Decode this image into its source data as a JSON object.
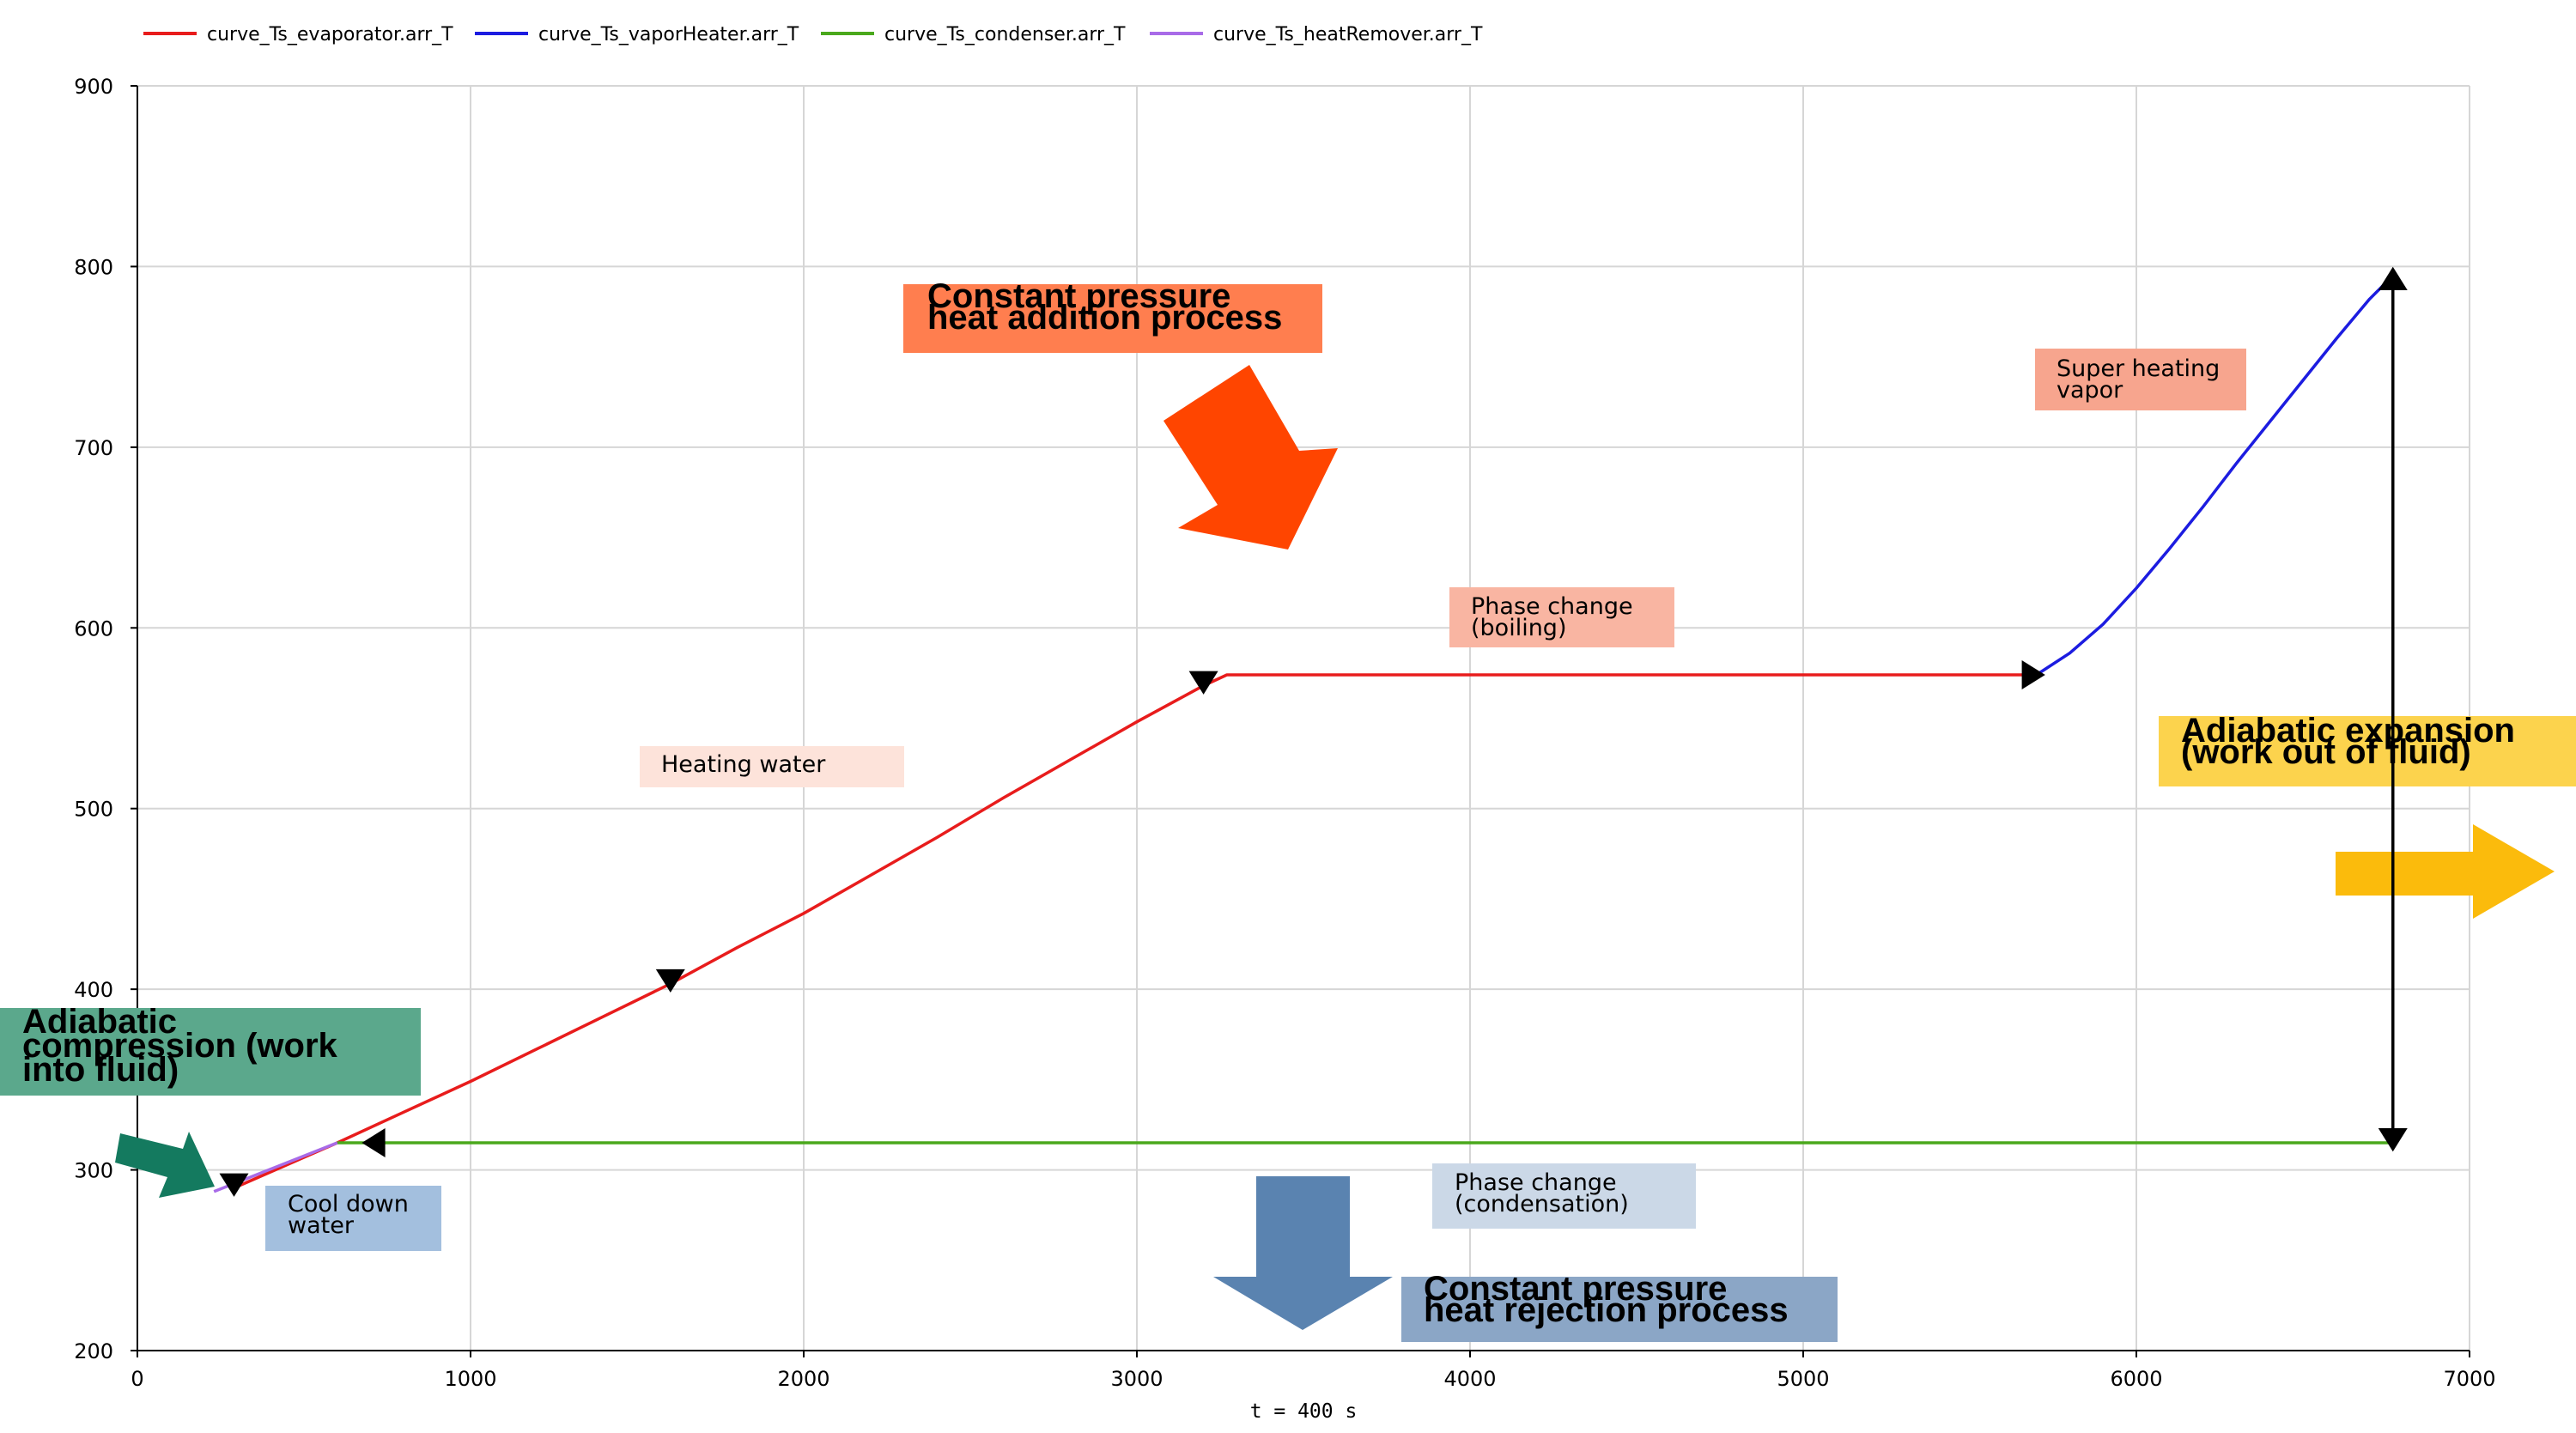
{
  "chart_data": {
    "type": "line",
    "title": "",
    "xlabel": "t = 400 s",
    "ylabel": "",
    "xlim": [
      0,
      7000
    ],
    "ylim": [
      200,
      900
    ],
    "xticks": [
      0,
      1000,
      2000,
      3000,
      4000,
      5000,
      6000,
      7000
    ],
    "yticks": [
      200,
      300,
      400,
      500,
      600,
      700,
      800,
      900
    ],
    "grid": true,
    "legend_position": "top-left",
    "series": [
      {
        "name": "curve_Ts_evaporator.arr_T",
        "color": "#e81c1c",
        "x": [
          290,
          600,
          800,
          1000,
          1200,
          1400,
          1600,
          1800,
          2000,
          2200,
          2400,
          2600,
          2800,
          3000,
          3200,
          3270,
          4000,
          5000,
          5700
        ],
        "y": [
          290,
          315,
          332,
          349,
          367,
          385,
          403,
          423,
          442,
          463,
          484,
          506,
          527,
          548,
          568,
          574,
          574,
          574,
          574
        ]
      },
      {
        "name": "curve_Ts_vaporHeater.arr_T",
        "color": "#1c1ce0",
        "x": [
          5700,
          5800,
          5900,
          6000,
          6100,
          6200,
          6300,
          6400,
          6500,
          6600,
          6700,
          6770
        ],
        "y": [
          574,
          586,
          602,
          622,
          644,
          667,
          691,
          714,
          737,
          760,
          782,
          795
        ]
      },
      {
        "name": "curve_Ts_condenser.arr_T",
        "color": "#4aa81c",
        "x": [
          600,
          6770
        ],
        "y": [
          315,
          315
        ]
      },
      {
        "name": "curve_Ts_heatRemover.arr_T",
        "color": "#a86be8",
        "x": [
          230,
          600
        ],
        "y": [
          288,
          315
        ]
      }
    ],
    "vertical_line": {
      "x": 6770,
      "y": [
        315,
        795
      ],
      "color": "#000000"
    },
    "direction_markers": [
      {
        "x": 1600,
        "y": 403,
        "dir": "down"
      },
      {
        "x": 3200,
        "y": 568,
        "dir": "down"
      },
      {
        "x": 5700,
        "y": 574,
        "dir": "right"
      },
      {
        "x": 6770,
        "y": 795,
        "dir": "up"
      },
      {
        "x": 6770,
        "y": 315,
        "dir": "down"
      },
      {
        "x": 700,
        "y": 315,
        "dir": "left"
      },
      {
        "x": 290,
        "y": 290,
        "dir": "down"
      }
    ],
    "annotations": [
      {
        "id": "heat-addition",
        "text": [
          "Constant pressure",
          "heat addition process"
        ],
        "bg": "#ff7e4f"
      },
      {
        "id": "heating-water",
        "text": [
          "Heating water"
        ],
        "bg": "#fde3da"
      },
      {
        "id": "boiling",
        "text": [
          "Phase change",
          "(boiling)"
        ],
        "bg": "#f9b5a2"
      },
      {
        "id": "superheating",
        "text": [
          "Super heating",
          "vapor"
        ],
        "bg": "#f7a58e"
      },
      {
        "id": "adiabatic-expansion",
        "text": [
          "Adiabatic expansion",
          "(work out of fluid)"
        ],
        "bg": "#fcd34d"
      },
      {
        "id": "adiabatic-compression",
        "text": [
          "Adiabatic",
          "compression (work",
          "into fluid)"
        ],
        "bg": "#5ba88c"
      },
      {
        "id": "cool-down",
        "text": [
          "Cool down",
          "water"
        ],
        "bg": "#a3bfde"
      },
      {
        "id": "condensation",
        "text": [
          "Phase change",
          "(condensation)"
        ],
        "bg": "#cbd8e7"
      },
      {
        "id": "heat-rejection",
        "text": [
          "Constant pressure",
          "heat rejection process"
        ],
        "bg": "#8ba6c6"
      }
    ]
  }
}
